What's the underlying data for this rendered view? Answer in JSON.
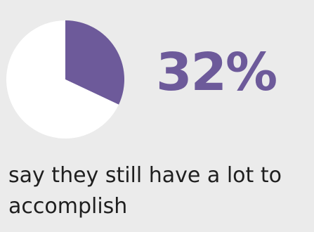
{
  "colors": {
    "accent": "#6d5a9a",
    "pie_rest": "#ffffff",
    "background": "#ebebeb",
    "text": "#1f1f1f"
  },
  "stat": {
    "value_text": "32%",
    "caption": "say they still have a lot to accomplish"
  },
  "chart_data": {
    "type": "pie",
    "categories": [
      "",
      ""
    ],
    "values": [
      32,
      68
    ],
    "colors": [
      "#6d5a9a",
      "#ffffff"
    ],
    "title": "",
    "legend": "none"
  }
}
